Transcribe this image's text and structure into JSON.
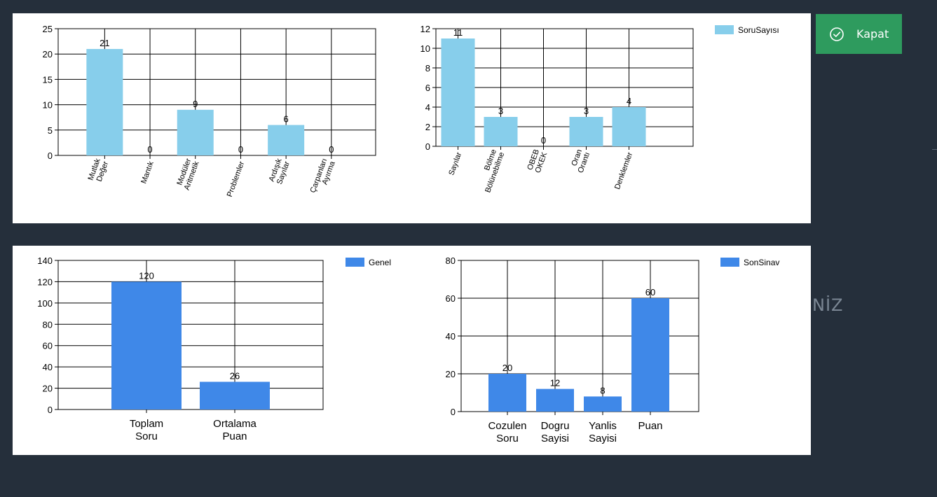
{
  "close_button": {
    "label": "Kapat",
    "icon": "check-circle-icon"
  },
  "background_text": "NİZ",
  "chart_data": [
    {
      "id": "c1",
      "type": "bar",
      "categories": [
        [
          "Mutlak",
          "Değer"
        ],
        [
          "Mantık"
        ],
        [
          "Modüler",
          "Aritmetik"
        ],
        [
          "Problemler"
        ],
        [
          "Ardışık",
          "Sayılar"
        ],
        [
          "Çarpanları",
          "Ayırma"
        ]
      ],
      "series": [
        {
          "values": [
            21,
            0,
            9,
            0,
            6,
            0
          ]
        }
      ],
      "ylim": [
        0,
        25
      ],
      "yticks": [
        0,
        5,
        10,
        15,
        20,
        25
      ],
      "color": "#87ceeb",
      "grid": true,
      "tick_rotation": -70,
      "legend": null
    },
    {
      "id": "c2",
      "type": "bar",
      "categories": [
        [
          "Sayılar"
        ],
        [
          "Bölme",
          "Bölünebilme"
        ],
        [
          "OBEB",
          "OKEK"
        ],
        [
          "Oran",
          "Orantı"
        ],
        [
          "Denklemler"
        ]
      ],
      "series": [
        {
          "name": "SoruSayısı",
          "values": [
            11,
            3,
            0,
            3,
            4
          ]
        }
      ],
      "ylim": [
        0,
        12
      ],
      "yticks": [
        0,
        2,
        4,
        6,
        8,
        10,
        12
      ],
      "color": "#87ceeb",
      "grid": true,
      "tick_rotation": -70,
      "legend": "top-right"
    },
    {
      "id": "c3",
      "type": "bar",
      "categories": [
        [
          "Toplam",
          "Soru"
        ],
        [
          "Ortalama",
          "Puan"
        ]
      ],
      "series": [
        {
          "name": "Genel",
          "values": [
            120,
            26
          ]
        }
      ],
      "ylim": [
        0,
        140
      ],
      "yticks": [
        0,
        20,
        40,
        60,
        80,
        100,
        120,
        140
      ],
      "color": "#3f88e8",
      "grid": true,
      "tick_rotation": 0,
      "legend": "top-right"
    },
    {
      "id": "c4",
      "type": "bar",
      "categories": [
        [
          "Cozulen",
          "Soru"
        ],
        [
          "Dogru",
          "Sayisi"
        ],
        [
          "Yanlis",
          "Sayisi"
        ],
        [
          "Puan"
        ]
      ],
      "series": [
        {
          "name": "SonSinav",
          "values": [
            20,
            12,
            8,
            60
          ]
        }
      ],
      "ylim": [
        0,
        80
      ],
      "yticks": [
        0,
        20,
        40,
        60,
        80
      ],
      "color": "#3f88e8",
      "grid": true,
      "tick_rotation": 0,
      "legend": "top-right"
    }
  ]
}
